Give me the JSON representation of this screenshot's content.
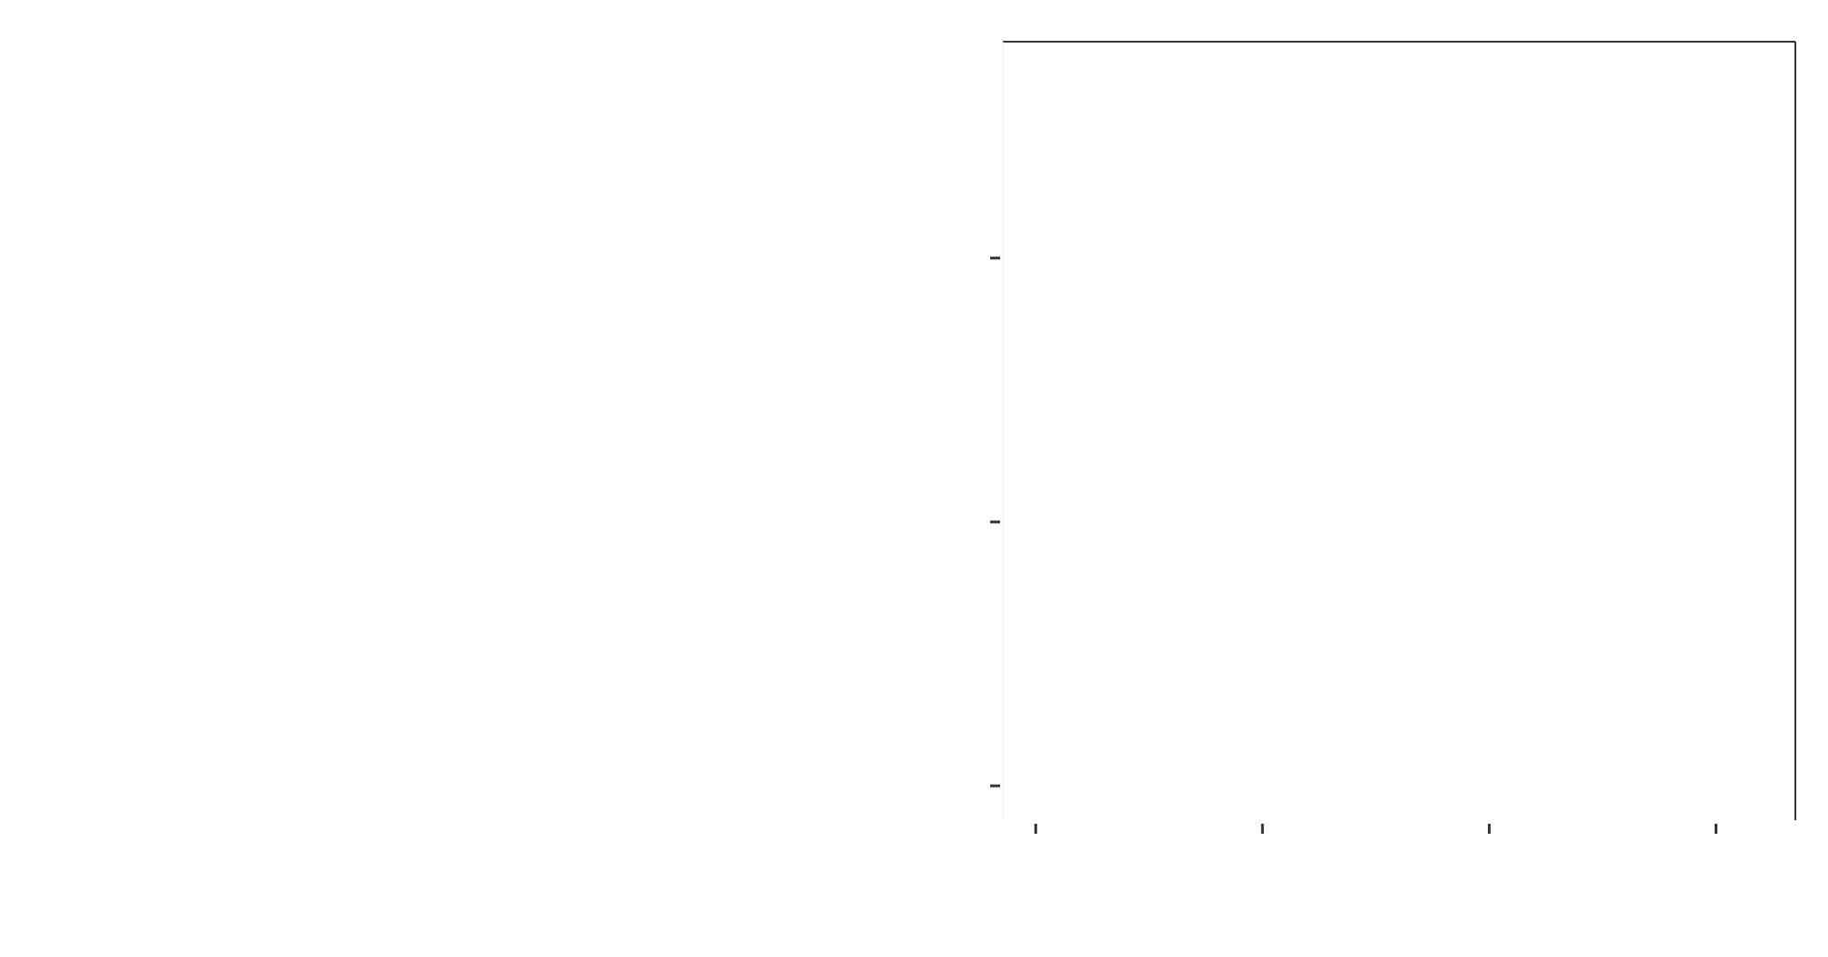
{
  "chart_data": {
    "type": "line",
    "title": "",
    "xlabel": "",
    "ylabel": "",
    "grid": false,
    "x_ticks": [
      0,
      1,
      2,
      3
    ],
    "x_tick_labels": [
      "",
      "",
      "",
      ""
    ],
    "y_ticks": [
      0,
      1,
      2
    ],
    "y_tick_labels": [
      "",
      "",
      ""
    ],
    "xlim": [
      -0.145,
      3.35
    ],
    "ylim": [
      -0.13,
      2.82
    ],
    "series": []
  },
  "colors": {
    "axis": "#333333",
    "faint_axis": "#ececec",
    "background": "#ffffff"
  }
}
